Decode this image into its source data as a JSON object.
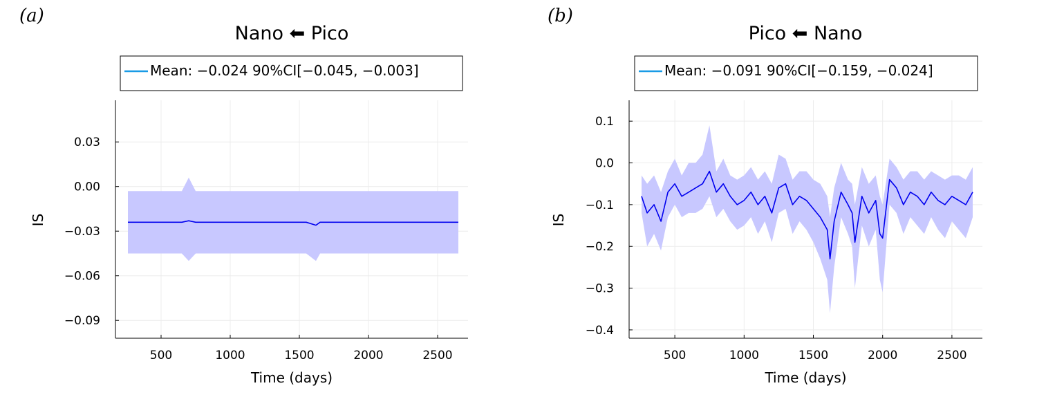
{
  "chart_data": [
    {
      "type": "line",
      "panel_label": "(a)",
      "title": "Nano ⬅ Pico",
      "xlabel": "Time (days)",
      "ylabel": "IS",
      "xlim": [
        170,
        2720
      ],
      "ylim": [
        -0.102,
        0.058
      ],
      "xticks": [
        500,
        1000,
        1500,
        2000,
        2500
      ],
      "xtick_labels": [
        "500",
        "1000",
        "1500",
        "2000",
        "2500"
      ],
      "yticks": [
        0.03,
        0.0,
        -0.03,
        -0.06,
        -0.09
      ],
      "ytick_labels": [
        "0.03",
        "0.00",
        "−0.03",
        "−0.06",
        "−0.09"
      ],
      "grid": true,
      "legend_position": "top",
      "series": [
        {
          "name": "Mean: −0.024 90%CI[−0.045, −0.003]",
          "color": "#0000ee",
          "band_color": "#c8c8ff",
          "x": [
            260,
            350,
            450,
            550,
            650,
            700,
            750,
            850,
            950,
            1050,
            1150,
            1250,
            1350,
            1450,
            1550,
            1620,
            1650,
            1750,
            1850,
            1950,
            2050,
            2150,
            2250,
            2350,
            2450,
            2550,
            2650
          ],
          "mean": [
            -0.024,
            -0.024,
            -0.024,
            -0.024,
            -0.024,
            -0.023,
            -0.024,
            -0.024,
            -0.024,
            -0.024,
            -0.024,
            -0.024,
            -0.024,
            -0.024,
            -0.024,
            -0.026,
            -0.024,
            -0.024,
            -0.024,
            -0.024,
            -0.024,
            -0.024,
            -0.024,
            -0.024,
            -0.024,
            -0.024,
            -0.024
          ],
          "upper": [
            -0.003,
            -0.003,
            -0.003,
            -0.003,
            -0.003,
            0.006,
            -0.003,
            -0.003,
            -0.003,
            -0.003,
            -0.003,
            -0.003,
            -0.003,
            -0.003,
            -0.003,
            -0.003,
            -0.003,
            -0.003,
            -0.003,
            -0.003,
            -0.003,
            -0.003,
            -0.003,
            -0.003,
            -0.003,
            -0.003,
            -0.003
          ],
          "lower": [
            -0.045,
            -0.045,
            -0.045,
            -0.045,
            -0.045,
            -0.05,
            -0.045,
            -0.045,
            -0.045,
            -0.045,
            -0.045,
            -0.045,
            -0.045,
            -0.045,
            -0.045,
            -0.05,
            -0.045,
            -0.045,
            -0.045,
            -0.045,
            -0.045,
            -0.045,
            -0.045,
            -0.045,
            -0.045,
            -0.045,
            -0.045
          ]
        }
      ]
    },
    {
      "type": "line",
      "panel_label": "(b)",
      "title": "Pico ⬅ Nano",
      "xlabel": "Time (days)",
      "ylabel": "IS",
      "xlim": [
        170,
        2720
      ],
      "ylim": [
        -0.42,
        0.15
      ],
      "xticks": [
        500,
        1000,
        1500,
        2000,
        2500
      ],
      "xtick_labels": [
        "500",
        "1000",
        "1500",
        "2000",
        "2500"
      ],
      "yticks": [
        0.1,
        0.0,
        -0.1,
        -0.2,
        -0.3,
        -0.4
      ],
      "ytick_labels": [
        "0.1",
        "0.0",
        "−0.1",
        "−0.2",
        "−0.3",
        "−0.4"
      ],
      "grid": true,
      "legend_position": "top",
      "series": [
        {
          "name": "Mean: −0.091 90%CI[−0.159, −0.024]",
          "color": "#0000ee",
          "band_color": "#c8c8ff",
          "x": [
            260,
            300,
            350,
            400,
            450,
            500,
            550,
            600,
            650,
            700,
            750,
            800,
            850,
            900,
            950,
            1000,
            1050,
            1100,
            1150,
            1200,
            1250,
            1300,
            1350,
            1400,
            1450,
            1500,
            1550,
            1600,
            1620,
            1650,
            1700,
            1750,
            1780,
            1800,
            1850,
            1900,
            1950,
            1980,
            2000,
            2050,
            2100,
            2150,
            2200,
            2250,
            2300,
            2350,
            2400,
            2450,
            2500,
            2550,
            2600,
            2650
          ],
          "mean": [
            -0.08,
            -0.12,
            -0.1,
            -0.14,
            -0.07,
            -0.05,
            -0.08,
            -0.07,
            -0.06,
            -0.05,
            -0.02,
            -0.07,
            -0.05,
            -0.08,
            -0.1,
            -0.09,
            -0.07,
            -0.1,
            -0.08,
            -0.12,
            -0.06,
            -0.05,
            -0.1,
            -0.08,
            -0.09,
            -0.11,
            -0.13,
            -0.16,
            -0.23,
            -0.14,
            -0.07,
            -0.1,
            -0.12,
            -0.19,
            -0.08,
            -0.12,
            -0.09,
            -0.17,
            -0.18,
            -0.04,
            -0.06,
            -0.1,
            -0.07,
            -0.08,
            -0.1,
            -0.07,
            -0.09,
            -0.1,
            -0.08,
            -0.09,
            -0.1,
            -0.07
          ],
          "upper": [
            -0.03,
            -0.05,
            -0.03,
            -0.07,
            -0.02,
            0.01,
            -0.03,
            0.0,
            0.0,
            0.02,
            0.09,
            -0.02,
            0.01,
            -0.03,
            -0.04,
            -0.03,
            -0.01,
            -0.04,
            -0.02,
            -0.05,
            0.02,
            0.01,
            -0.04,
            -0.02,
            -0.02,
            -0.04,
            -0.05,
            -0.08,
            -0.13,
            -0.06,
            0.0,
            -0.04,
            -0.05,
            -0.1,
            -0.01,
            -0.05,
            -0.03,
            -0.08,
            -0.1,
            0.01,
            -0.01,
            -0.04,
            -0.02,
            -0.02,
            -0.04,
            -0.02,
            -0.03,
            -0.04,
            -0.03,
            -0.03,
            -0.04,
            -0.01
          ],
          "lower": [
            -0.12,
            -0.2,
            -0.17,
            -0.21,
            -0.13,
            -0.1,
            -0.13,
            -0.12,
            -0.12,
            -0.11,
            -0.08,
            -0.13,
            -0.11,
            -0.14,
            -0.16,
            -0.15,
            -0.13,
            -0.17,
            -0.14,
            -0.19,
            -0.12,
            -0.11,
            -0.17,
            -0.14,
            -0.16,
            -0.19,
            -0.23,
            -0.28,
            -0.36,
            -0.25,
            -0.13,
            -0.17,
            -0.2,
            -0.3,
            -0.15,
            -0.2,
            -0.16,
            -0.28,
            -0.31,
            -0.1,
            -0.12,
            -0.17,
            -0.13,
            -0.15,
            -0.17,
            -0.13,
            -0.16,
            -0.18,
            -0.14,
            -0.16,
            -0.18,
            -0.13
          ]
        }
      ]
    }
  ]
}
